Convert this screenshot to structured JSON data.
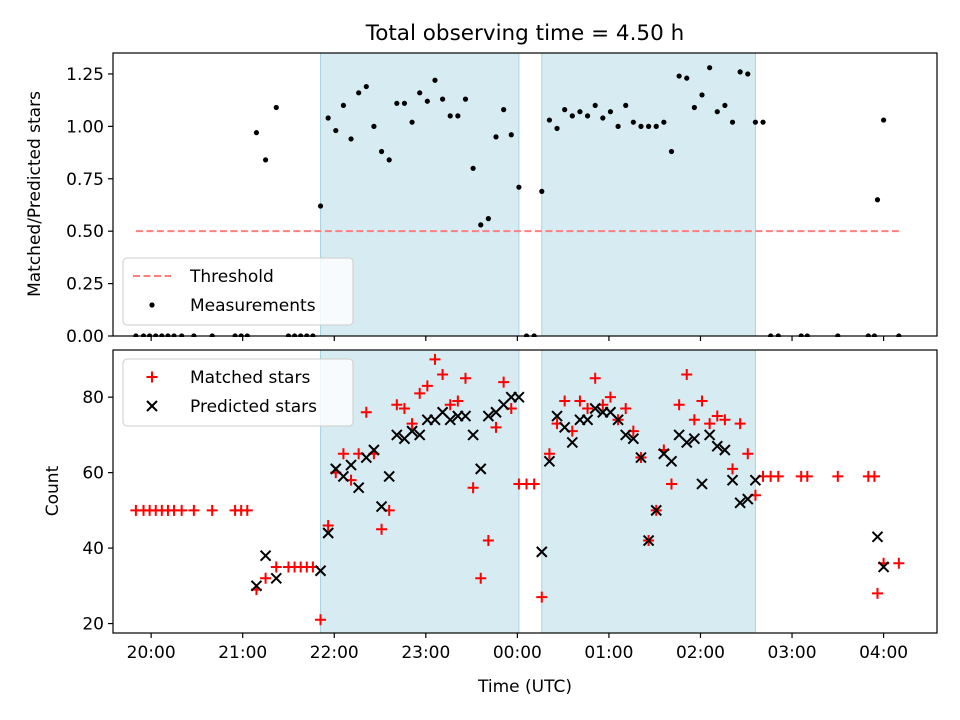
{
  "chart_data": [
    {
      "type": "scatter",
      "title": "Total observing time = 4.50 h",
      "xlabel": "",
      "ylabel": "Matched/Predicted stars",
      "xlim": [
        "19:35",
        "04:35"
      ],
      "ylim": [
        0,
        1.35
      ],
      "yticks": [
        "0.00",
        "0.25",
        "0.50",
        "0.75",
        "1.00",
        "1.25"
      ],
      "grid": false,
      "legend_position": "lower-left",
      "shaded_intervals": [
        [
          "21:51",
          "00:01"
        ],
        [
          "00:16",
          "02:36"
        ]
      ],
      "series": [
        {
          "name": "Threshold",
          "style": "dashed-line",
          "color": "#ff7f7f",
          "points": [
            [
              "19:50",
              0.5
            ],
            [
              "04:10",
              0.5
            ]
          ]
        },
        {
          "name": "Measurements",
          "style": "dot",
          "color": "#000000",
          "points": [
            [
              "19:50",
              0
            ],
            [
              "19:55",
              0
            ],
            [
              "19:59",
              0
            ],
            [
              "20:03",
              0
            ],
            [
              "20:07",
              0
            ],
            [
              "20:11",
              0
            ],
            [
              "20:15",
              0
            ],
            [
              "20:20",
              0
            ],
            [
              "20:28",
              0
            ],
            [
              "20:40",
              0
            ],
            [
              "20:55",
              0
            ],
            [
              "20:59",
              0
            ],
            [
              "21:03",
              0
            ],
            [
              "21:09",
              0.97
            ],
            [
              "21:15",
              0.84
            ],
            [
              "21:22",
              1.09
            ],
            [
              "21:30",
              0
            ],
            [
              "21:34",
              0
            ],
            [
              "21:38",
              0
            ],
            [
              "21:42",
              0
            ],
            [
              "21:46",
              0
            ],
            [
              "21:51",
              0.62
            ],
            [
              "21:56",
              1.04
            ],
            [
              "22:01",
              0.98
            ],
            [
              "22:06",
              1.1
            ],
            [
              "22:11",
              0.94
            ],
            [
              "22:16",
              1.16
            ],
            [
              "22:21",
              1.19
            ],
            [
              "22:26",
              1.0
            ],
            [
              "22:31",
              0.88
            ],
            [
              "22:36",
              0.84
            ],
            [
              "22:41",
              1.11
            ],
            [
              "22:46",
              1.11
            ],
            [
              "22:51",
              1.02
            ],
            [
              "22:56",
              1.16
            ],
            [
              "23:01",
              1.12
            ],
            [
              "23:06",
              1.22
            ],
            [
              "23:11",
              1.13
            ],
            [
              "23:16",
              1.05
            ],
            [
              "23:21",
              1.05
            ],
            [
              "23:26",
              1.13
            ],
            [
              "23:31",
              0.8
            ],
            [
              "23:36",
              0.53
            ],
            [
              "23:41",
              0.56
            ],
            [
              "23:46",
              0.95
            ],
            [
              "23:51",
              1.08
            ],
            [
              "23:56",
              0.96
            ],
            [
              "00:01",
              0.71
            ],
            [
              "00:06",
              0
            ],
            [
              "00:11",
              0
            ],
            [
              "00:16",
              0.69
            ],
            [
              "00:21",
              1.03
            ],
            [
              "00:26",
              0.99
            ],
            [
              "00:31",
              1.08
            ],
            [
              "00:36",
              1.05
            ],
            [
              "00:41",
              1.07
            ],
            [
              "00:46",
              1.05
            ],
            [
              "00:51",
              1.1
            ],
            [
              "00:56",
              1.04
            ],
            [
              "01:01",
              1.07
            ],
            [
              "01:06",
              1.0
            ],
            [
              "01:11",
              1.1
            ],
            [
              "01:16",
              1.02
            ],
            [
              "01:21",
              1.0
            ],
            [
              "01:26",
              1.0
            ],
            [
              "01:31",
              1.0
            ],
            [
              "01:36",
              1.02
            ],
            [
              "01:41",
              0.88
            ],
            [
              "01:46",
              1.24
            ],
            [
              "01:51",
              1.23
            ],
            [
              "01:56",
              1.09
            ],
            [
              "02:01",
              1.15
            ],
            [
              "02:06",
              1.28
            ],
            [
              "02:11",
              1.07
            ],
            [
              "02:16",
              1.1
            ],
            [
              "02:21",
              1.02
            ],
            [
              "02:26",
              1.26
            ],
            [
              "02:31",
              1.25
            ],
            [
              "02:36",
              1.02
            ],
            [
              "02:41",
              1.02
            ],
            [
              "02:46",
              0
            ],
            [
              "02:51",
              0
            ],
            [
              "03:06",
              0
            ],
            [
              "03:10",
              0
            ],
            [
              "03:30",
              0
            ],
            [
              "03:50",
              0
            ],
            [
              "03:54",
              0
            ],
            [
              "03:56",
              0.65
            ],
            [
              "04:00",
              1.03
            ],
            [
              "04:10",
              0
            ]
          ]
        }
      ]
    },
    {
      "type": "scatter",
      "title": "",
      "xlabel": "Time (UTC)",
      "ylabel": "Count",
      "xlim": [
        "19:35",
        "04:35"
      ],
      "ylim": [
        17.5,
        92.5
      ],
      "xticks": [
        "20:00",
        "21:00",
        "22:00",
        "23:00",
        "00:00",
        "01:00",
        "02:00",
        "03:00",
        "04:00"
      ],
      "yticks": [
        "20",
        "40",
        "60",
        "80"
      ],
      "grid": false,
      "legend_position": "top-left",
      "shaded_intervals": [
        [
          "21:51",
          "00:01"
        ],
        [
          "00:16",
          "02:36"
        ]
      ],
      "series": [
        {
          "name": "Matched stars",
          "style": "plus",
          "color": "#ff0000",
          "points": [
            [
              "19:50",
              50
            ],
            [
              "19:55",
              50
            ],
            [
              "19:59",
              50
            ],
            [
              "20:03",
              50
            ],
            [
              "20:07",
              50
            ],
            [
              "20:11",
              50
            ],
            [
              "20:15",
              50
            ],
            [
              "20:20",
              50
            ],
            [
              "20:28",
              50
            ],
            [
              "20:40",
              50
            ],
            [
              "20:55",
              50
            ],
            [
              "20:59",
              50
            ],
            [
              "21:03",
              50
            ],
            [
              "21:09",
              29
            ],
            [
              "21:15",
              32
            ],
            [
              "21:22",
              35
            ],
            [
              "21:30",
              35
            ],
            [
              "21:34",
              35
            ],
            [
              "21:38",
              35
            ],
            [
              "21:42",
              35
            ],
            [
              "21:46",
              35
            ],
            [
              "21:51",
              21
            ],
            [
              "21:56",
              46
            ],
            [
              "22:01",
              60
            ],
            [
              "22:06",
              65
            ],
            [
              "22:11",
              58
            ],
            [
              "22:16",
              65
            ],
            [
              "22:21",
              76
            ],
            [
              "22:26",
              65
            ],
            [
              "22:31",
              45
            ],
            [
              "22:36",
              50
            ],
            [
              "22:41",
              78
            ],
            [
              "22:46",
              77
            ],
            [
              "22:51",
              73
            ],
            [
              "22:56",
              81
            ],
            [
              "23:01",
              83
            ],
            [
              "23:06",
              90
            ],
            [
              "23:11",
              86
            ],
            [
              "23:16",
              78
            ],
            [
              "23:21",
              79
            ],
            [
              "23:26",
              85
            ],
            [
              "23:31",
              56
            ],
            [
              "23:36",
              32
            ],
            [
              "23:41",
              42
            ],
            [
              "23:46",
              72
            ],
            [
              "23:51",
              84
            ],
            [
              "23:56",
              77
            ],
            [
              "00:01",
              57
            ],
            [
              "00:06",
              57
            ],
            [
              "00:11",
              57
            ],
            [
              "00:16",
              27
            ],
            [
              "00:21",
              65
            ],
            [
              "00:26",
              73
            ],
            [
              "00:31",
              79
            ],
            [
              "00:36",
              71
            ],
            [
              "00:41",
              79
            ],
            [
              "00:46",
              77
            ],
            [
              "00:51",
              85
            ],
            [
              "00:56",
              78
            ],
            [
              "01:01",
              80
            ],
            [
              "01:06",
              74
            ],
            [
              "01:11",
              77
            ],
            [
              "01:16",
              71
            ],
            [
              "01:21",
              64
            ],
            [
              "01:26",
              42
            ],
            [
              "01:31",
              50
            ],
            [
              "01:36",
              66
            ],
            [
              "01:41",
              57
            ],
            [
              "01:46",
              78
            ],
            [
              "01:51",
              86
            ],
            [
              "01:56",
              74
            ],
            [
              "02:01",
              79
            ],
            [
              "02:06",
              73
            ],
            [
              "02:11",
              75
            ],
            [
              "02:16",
              74
            ],
            [
              "02:21",
              61
            ],
            [
              "02:26",
              73
            ],
            [
              "02:31",
              65
            ],
            [
              "02:36",
              54
            ],
            [
              "02:41",
              59
            ],
            [
              "02:46",
              59
            ],
            [
              "02:51",
              59
            ],
            [
              "03:06",
              59
            ],
            [
              "03:10",
              59
            ],
            [
              "03:30",
              59
            ],
            [
              "03:50",
              59
            ],
            [
              "03:54",
              59
            ],
            [
              "03:56",
              28
            ],
            [
              "04:00",
              36
            ],
            [
              "04:10",
              36
            ]
          ]
        },
        {
          "name": "Predicted stars",
          "style": "x",
          "color": "#000000",
          "points": [
            [
              "21:09",
              30
            ],
            [
              "21:15",
              38
            ],
            [
              "21:22",
              32
            ],
            [
              "21:51",
              34
            ],
            [
              "21:56",
              44
            ],
            [
              "22:01",
              61
            ],
            [
              "22:06",
              59
            ],
            [
              "22:11",
              62
            ],
            [
              "22:16",
              56
            ],
            [
              "22:21",
              64
            ],
            [
              "22:26",
              66
            ],
            [
              "22:31",
              51
            ],
            [
              "22:36",
              59
            ],
            [
              "22:41",
              70
            ],
            [
              "22:46",
              69
            ],
            [
              "22:51",
              71
            ],
            [
              "22:56",
              70
            ],
            [
              "23:01",
              74
            ],
            [
              "23:06",
              74
            ],
            [
              "23:11",
              76
            ],
            [
              "23:16",
              74
            ],
            [
              "23:21",
              75
            ],
            [
              "23:26",
              75
            ],
            [
              "23:31",
              70
            ],
            [
              "23:36",
              61
            ],
            [
              "23:41",
              75
            ],
            [
              "23:46",
              76
            ],
            [
              "23:51",
              78
            ],
            [
              "23:56",
              80
            ],
            [
              "00:01",
              80
            ],
            [
              "00:16",
              39
            ],
            [
              "00:21",
              63
            ],
            [
              "00:26",
              75
            ],
            [
              "00:31",
              72
            ],
            [
              "00:36",
              68
            ],
            [
              "00:41",
              74
            ],
            [
              "00:46",
              74
            ],
            [
              "00:51",
              77
            ],
            [
              "00:56",
              76
            ],
            [
              "01:01",
              76
            ],
            [
              "01:06",
              74
            ],
            [
              "01:11",
              70
            ],
            [
              "01:16",
              69
            ],
            [
              "01:21",
              64
            ],
            [
              "01:26",
              42
            ],
            [
              "01:31",
              50
            ],
            [
              "01:36",
              65
            ],
            [
              "01:41",
              63
            ],
            [
              "01:46",
              70
            ],
            [
              "01:51",
              68
            ],
            [
              "01:56",
              69
            ],
            [
              "02:01",
              57
            ],
            [
              "02:06",
              70
            ],
            [
              "02:11",
              67
            ],
            [
              "02:16",
              66
            ],
            [
              "02:21",
              58
            ],
            [
              "02:26",
              52
            ],
            [
              "02:31",
              53
            ],
            [
              "02:36",
              58
            ],
            [
              "03:56",
              43
            ],
            [
              "04:00",
              35
            ]
          ]
        }
      ]
    }
  ]
}
